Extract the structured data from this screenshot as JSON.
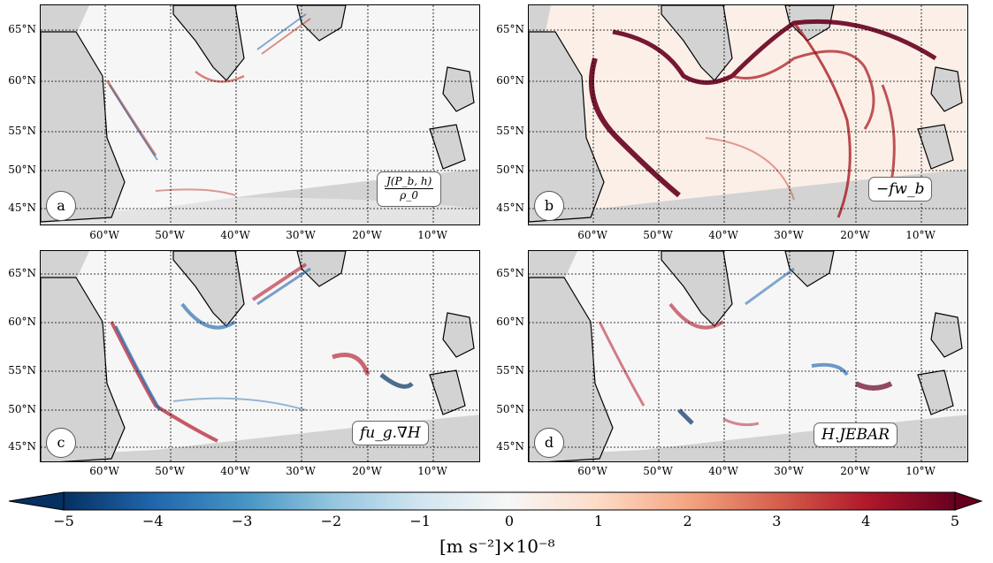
{
  "lat_labels": [
    "65°N",
    "60°N",
    "55°N",
    "50°N",
    "45°N"
  ],
  "lon_labels": [
    "60°W",
    "50°W",
    "40°W",
    "30°W",
    "20°W",
    "10°W"
  ],
  "panels": [
    {
      "letter": "a",
      "term": "",
      "term_num": "J(P_b, h)",
      "term_den": "ρ_0"
    },
    {
      "letter": "b",
      "term": "−fw_b",
      "term_num": "",
      "term_den": ""
    },
    {
      "letter": "c",
      "term": "fu_g.∇H",
      "term_num": "",
      "term_den": ""
    },
    {
      "letter": "d",
      "term": "H.JEBAR",
      "term_num": "",
      "term_den": ""
    }
  ],
  "colorbar": {
    "ticks": [
      "−5",
      "−4",
      "−3",
      "−2",
      "−1",
      "0",
      "1",
      "2",
      "3",
      "4",
      "5"
    ],
    "min": -5,
    "max": 5,
    "label": "[m s⁻²]×10⁻⁸",
    "cmap": "RdBu_r",
    "extend": "both"
  },
  "colors": {
    "land": "#d3d3d3",
    "no_data": "#f2f2f2",
    "ocean": "#f7f6f6",
    "neg": "#053061",
    "pos": "#67001f"
  }
}
